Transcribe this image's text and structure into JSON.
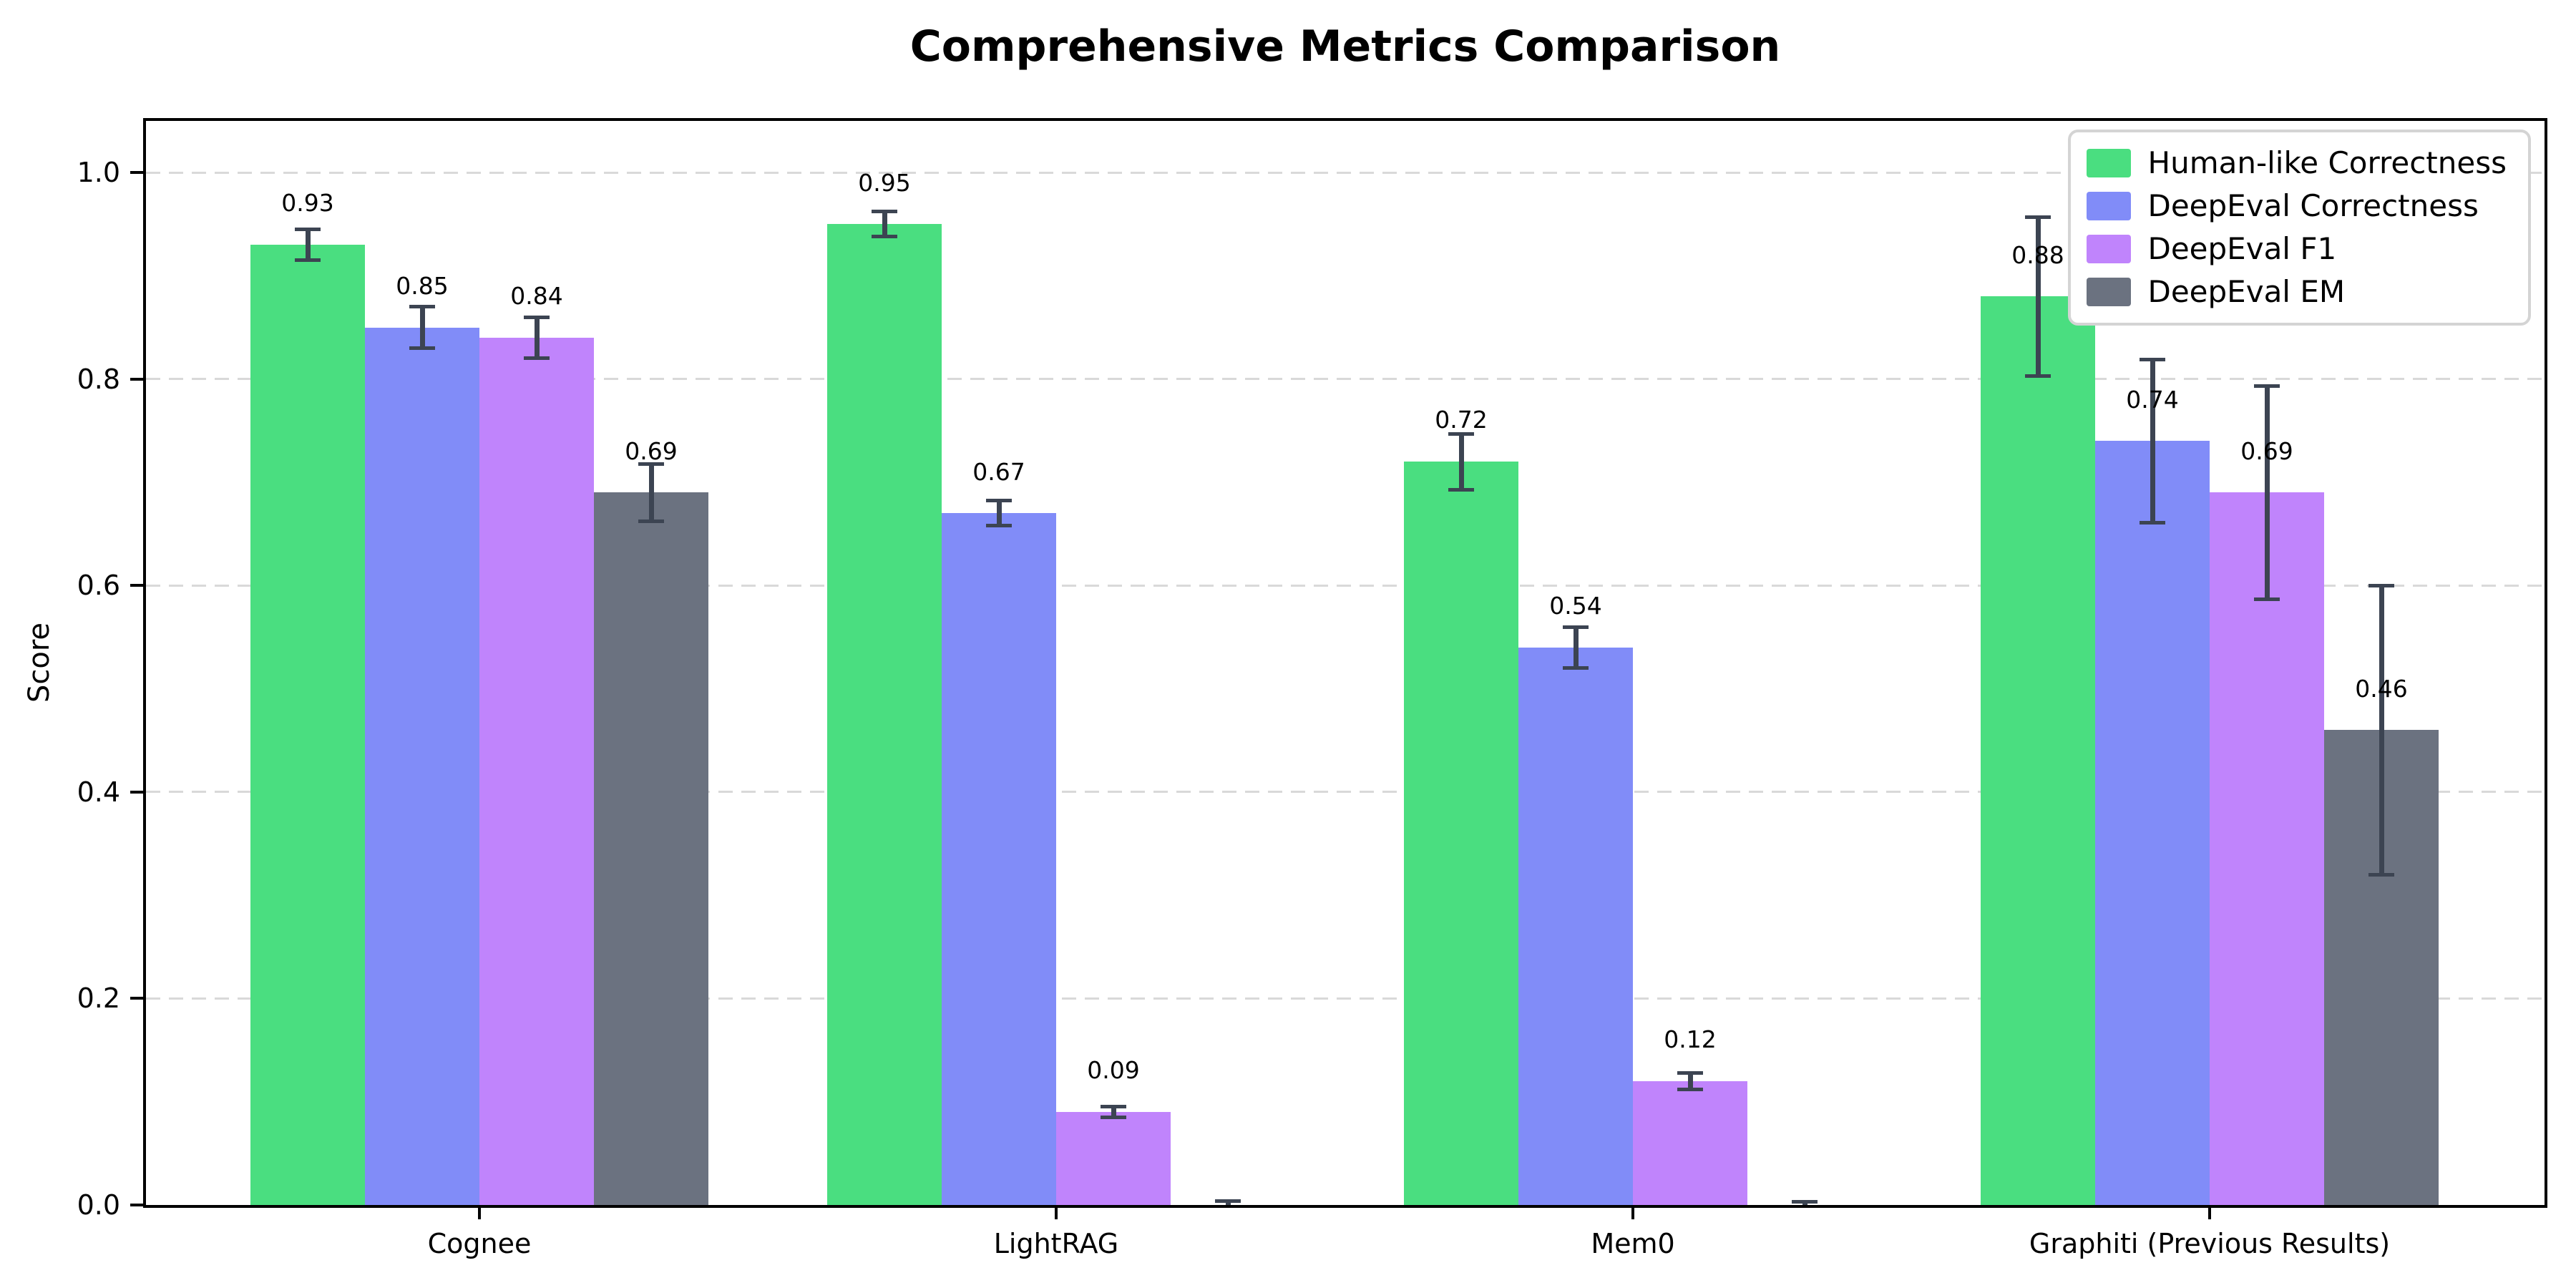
{
  "chart_data": {
    "type": "bar",
    "title": "Comprehensive Metrics Comparison",
    "ylabel": "Score",
    "xlabel": "",
    "categories": [
      "Cognee",
      "LightRAG",
      "Mem0",
      "Graphiti (Previous Results)"
    ],
    "series": [
      {
        "name": "Human-like Correctness",
        "color": "#4ade80",
        "values": [
          0.93,
          0.95,
          0.72,
          0.88
        ],
        "errors": [
          0.015,
          0.012,
          0.027,
          0.077
        ],
        "bar_labels": [
          "0.93",
          "0.95",
          "0.72",
          "0.88"
        ]
      },
      {
        "name": "DeepEval Correctness",
        "color": "#818cf8",
        "values": [
          0.85,
          0.67,
          0.54,
          0.74
        ],
        "errors": [
          0.02,
          0.012,
          0.02,
          0.079
        ],
        "bar_labels": [
          "0.85",
          "0.67",
          "0.54",
          "0.74"
        ]
      },
      {
        "name": "DeepEval F1",
        "color": "#c084fc",
        "values": [
          0.84,
          0.09,
          0.12,
          0.69
        ],
        "errors": [
          0.02,
          0.005,
          0.008,
          0.103
        ],
        "bar_labels": [
          "0.84",
          "0.09",
          "0.12",
          "0.69"
        ]
      },
      {
        "name": "DeepEval EM",
        "color": "#6b7280",
        "values": [
          0.69,
          0.0,
          0.0,
          0.46
        ],
        "errors": [
          0.028,
          0.004,
          0.003,
          0.14
        ],
        "bar_labels": [
          "0.69",
          "",
          "",
          "0.46"
        ]
      }
    ],
    "yticks": [
      {
        "value": 0.0,
        "label": "0.0"
      },
      {
        "value": 0.2,
        "label": "0.2"
      },
      {
        "value": 0.4,
        "label": "0.4"
      },
      {
        "value": 0.6,
        "label": "0.6"
      },
      {
        "value": 0.8,
        "label": "0.8"
      },
      {
        "value": 1.0,
        "label": "1.0"
      }
    ],
    "ylim": [
      0,
      1.05
    ],
    "grid": {
      "axis": "y",
      "line_style": "dashed",
      "color": "#d9d9d9"
    },
    "error_bar_color": "#3c4452",
    "legend": {
      "position": "upper right",
      "background": "#ffffff",
      "border_color": "#d4d4d4"
    },
    "axis_color": "#000000"
  }
}
